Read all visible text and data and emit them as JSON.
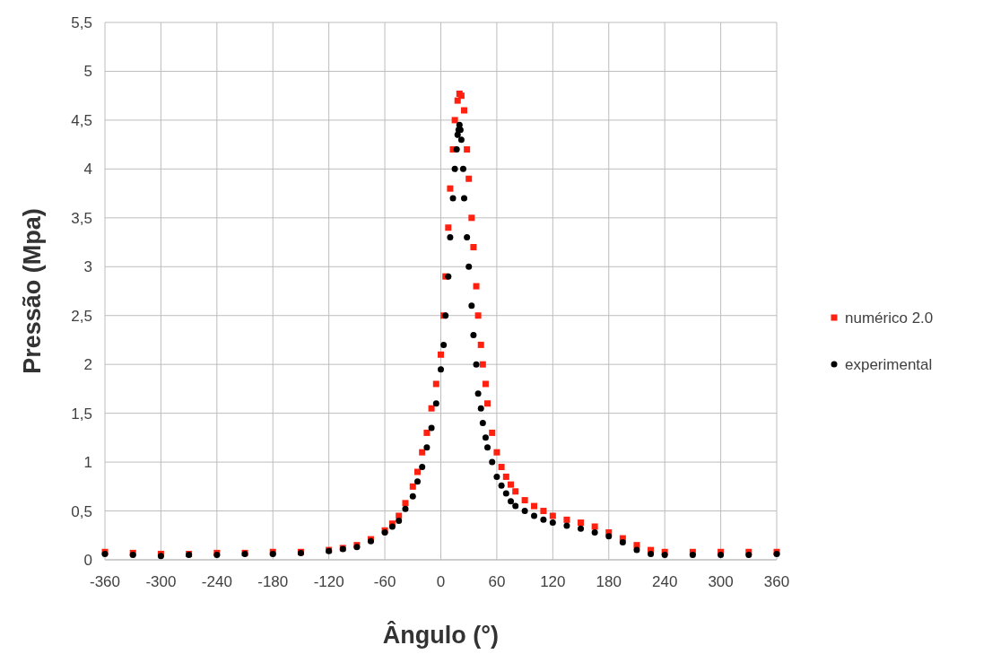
{
  "chart_data": {
    "type": "scatter",
    "xlabel": "Ângulo (°)",
    "ylabel": "Pressão (Mpa)",
    "xlim": [
      -360,
      360
    ],
    "xticks": [
      -360,
      -300,
      -240,
      -180,
      -120,
      -60,
      0,
      60,
      120,
      180,
      240,
      300,
      360
    ],
    "ylim": [
      0,
      5.5
    ],
    "yticks": [
      0,
      {
        "value": 0.5,
        "label": "0,5"
      },
      1,
      {
        "value": 1.5,
        "label": "1,5"
      },
      2,
      {
        "value": 2.5,
        "label": "2,5"
      },
      3,
      {
        "value": 3.5,
        "label": "3,5"
      },
      4,
      {
        "value": 4.5,
        "label": "4,5"
      },
      5,
      {
        "value": 5.5,
        "label": "5,5"
      }
    ],
    "grid": true,
    "legend": "right",
    "series": [
      {
        "name": "numérico 2.0",
        "color": "#ff2010",
        "marker": "square",
        "x": [
          -360,
          -330,
          -300,
          -270,
          -240,
          -210,
          -180,
          -150,
          -120,
          -105,
          -90,
          -75,
          -60,
          -52,
          -45,
          -38,
          -30,
          -25,
          -20,
          -15,
          -10,
          -5,
          0,
          3,
          5,
          8,
          10,
          13,
          15,
          18,
          20,
          22,
          25,
          28,
          30,
          33,
          35,
          38,
          40,
          43,
          45,
          48,
          50,
          55,
          60,
          65,
          70,
          75,
          80,
          90,
          100,
          110,
          120,
          135,
          150,
          165,
          180,
          195,
          210,
          225,
          240,
          270,
          300,
          330,
          360
        ],
        "values": [
          0.08,
          0.07,
          0.06,
          0.06,
          0.07,
          0.07,
          0.08,
          0.08,
          0.1,
          0.12,
          0.15,
          0.21,
          0.3,
          0.37,
          0.45,
          0.58,
          0.75,
          0.9,
          1.1,
          1.3,
          1.55,
          1.8,
          2.1,
          2.5,
          2.9,
          3.4,
          3.8,
          4.2,
          4.5,
          4.7,
          4.77,
          4.75,
          4.6,
          4.2,
          3.9,
          3.5,
          3.2,
          2.8,
          2.5,
          2.2,
          2.0,
          1.8,
          1.6,
          1.3,
          1.1,
          0.95,
          0.85,
          0.77,
          0.7,
          0.61,
          0.55,
          0.5,
          0.45,
          0.41,
          0.38,
          0.34,
          0.28,
          0.22,
          0.15,
          0.1,
          0.08,
          0.08,
          0.08,
          0.08,
          0.08
        ]
      },
      {
        "name": "experimental",
        "color": "#000000",
        "marker": "circle",
        "x": [
          -360,
          -330,
          -300,
          -270,
          -240,
          -210,
          -180,
          -150,
          -120,
          -105,
          -90,
          -75,
          -60,
          -52,
          -45,
          -38,
          -30,
          -25,
          -20,
          -15,
          -10,
          -5,
          0,
          3,
          5,
          8,
          10,
          13,
          15,
          17,
          18,
          19,
          20,
          21,
          22,
          24,
          25,
          28,
          30,
          33,
          35,
          38,
          40,
          43,
          45,
          48,
          50,
          55,
          60,
          65,
          70,
          75,
          80,
          90,
          100,
          110,
          120,
          135,
          150,
          165,
          180,
          195,
          210,
          225,
          240,
          270,
          300,
          330,
          360
        ],
        "values": [
          0.06,
          0.05,
          0.04,
          0.05,
          0.05,
          0.06,
          0.06,
          0.07,
          0.09,
          0.11,
          0.13,
          0.19,
          0.28,
          0.34,
          0.4,
          0.52,
          0.65,
          0.8,
          0.95,
          1.15,
          1.35,
          1.6,
          1.95,
          2.2,
          2.5,
          2.9,
          3.3,
          3.7,
          4.0,
          4.2,
          4.35,
          4.4,
          4.45,
          4.4,
          4.3,
          4.0,
          3.7,
          3.3,
          3.0,
          2.6,
          2.3,
          2.0,
          1.7,
          1.55,
          1.4,
          1.25,
          1.15,
          1.0,
          0.85,
          0.76,
          0.68,
          0.6,
          0.55,
          0.5,
          0.45,
          0.41,
          0.38,
          0.35,
          0.32,
          0.28,
          0.24,
          0.18,
          0.1,
          0.06,
          0.05,
          0.05,
          0.05,
          0.05,
          0.06
        ]
      }
    ]
  }
}
